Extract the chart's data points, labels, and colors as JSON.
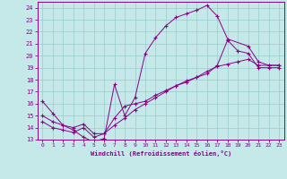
{
  "xlabel": "Windchill (Refroidissement éolien,°C)",
  "bg_color": "#c5e8e8",
  "line_color": "#880088",
  "grid_color": "#99cccc",
  "xlim": [
    -0.5,
    23.5
  ],
  "ylim": [
    13,
    24.5
  ],
  "xticks": [
    0,
    1,
    2,
    3,
    4,
    5,
    6,
    7,
    8,
    9,
    10,
    11,
    12,
    13,
    14,
    15,
    16,
    17,
    18,
    19,
    20,
    21,
    22,
    23
  ],
  "yticks": [
    13,
    14,
    15,
    16,
    17,
    18,
    19,
    20,
    21,
    22,
    23,
    24
  ],
  "line1_x": [
    0,
    1,
    2,
    3,
    4,
    5,
    6,
    7,
    8,
    9,
    10,
    11,
    12,
    13,
    14,
    15,
    16,
    17,
    18,
    20,
    21,
    22,
    23
  ],
  "line1_y": [
    16.2,
    15.2,
    14.2,
    13.8,
    13.2,
    12.8,
    13.1,
    17.6,
    15.0,
    16.5,
    20.2,
    21.5,
    22.5,
    23.2,
    23.5,
    23.8,
    24.2,
    23.3,
    21.4,
    20.8,
    19.5,
    19.2,
    19.2
  ],
  "line2_x": [
    0,
    1,
    2,
    3,
    4,
    5,
    6,
    7,
    8,
    9,
    10,
    11,
    12,
    13,
    14,
    15,
    16,
    17,
    18,
    19,
    20,
    21,
    22,
    23
  ],
  "line2_y": [
    15.0,
    14.5,
    14.2,
    14.0,
    14.3,
    13.5,
    13.5,
    14.2,
    14.8,
    15.5,
    16.0,
    16.5,
    17.0,
    17.5,
    17.8,
    18.2,
    18.7,
    19.1,
    19.3,
    19.5,
    19.7,
    19.2,
    19.2,
    19.2
  ],
  "line3_x": [
    0,
    1,
    2,
    3,
    4,
    5,
    6,
    7,
    8,
    9,
    10,
    11,
    12,
    13,
    14,
    15,
    16,
    17,
    18,
    19,
    20,
    21,
    22,
    23
  ],
  "line3_y": [
    14.5,
    14.0,
    13.8,
    13.6,
    14.0,
    13.2,
    13.5,
    14.8,
    15.8,
    16.0,
    16.2,
    16.7,
    17.1,
    17.5,
    17.9,
    18.2,
    18.5,
    19.2,
    21.3,
    20.4,
    20.2,
    19.0,
    19.0,
    19.0
  ]
}
